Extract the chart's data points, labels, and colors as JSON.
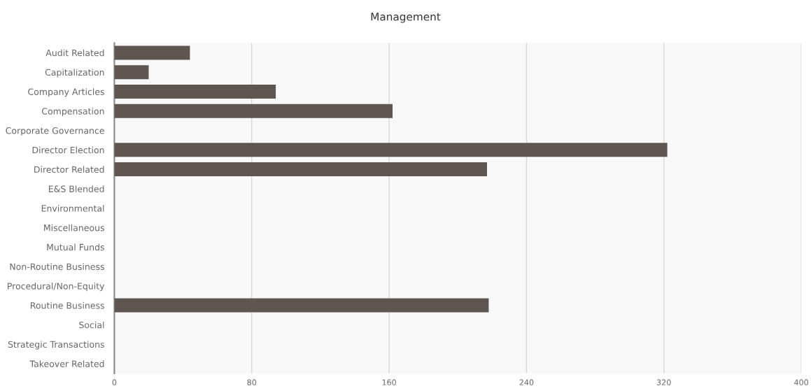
{
  "chart_data": {
    "type": "bar",
    "orientation": "horizontal",
    "title": "Management",
    "categories": [
      "Audit Related",
      "Capitalization",
      "Company Articles",
      "Compensation",
      "Corporate Governance",
      "Director Election",
      "Director Related",
      "E&S Blended",
      "Environmental",
      "Miscellaneous",
      "Mutual Funds",
      "Non-Routine Business",
      "Procedural/Non-Equity",
      "Routine Business",
      "Social",
      "Strategic Transactions",
      "Takeover Related"
    ],
    "series": [
      {
        "color": "#5f5651",
        "values": [
          44,
          20,
          94,
          162,
          0,
          322,
          217,
          0,
          0,
          0,
          0,
          0,
          0,
          218,
          0,
          0,
          0
        ]
      }
    ],
    "xlim": [
      0,
      400
    ],
    "xticks": [
      0,
      80,
      160,
      240,
      320,
      400
    ],
    "grid": "x"
  }
}
